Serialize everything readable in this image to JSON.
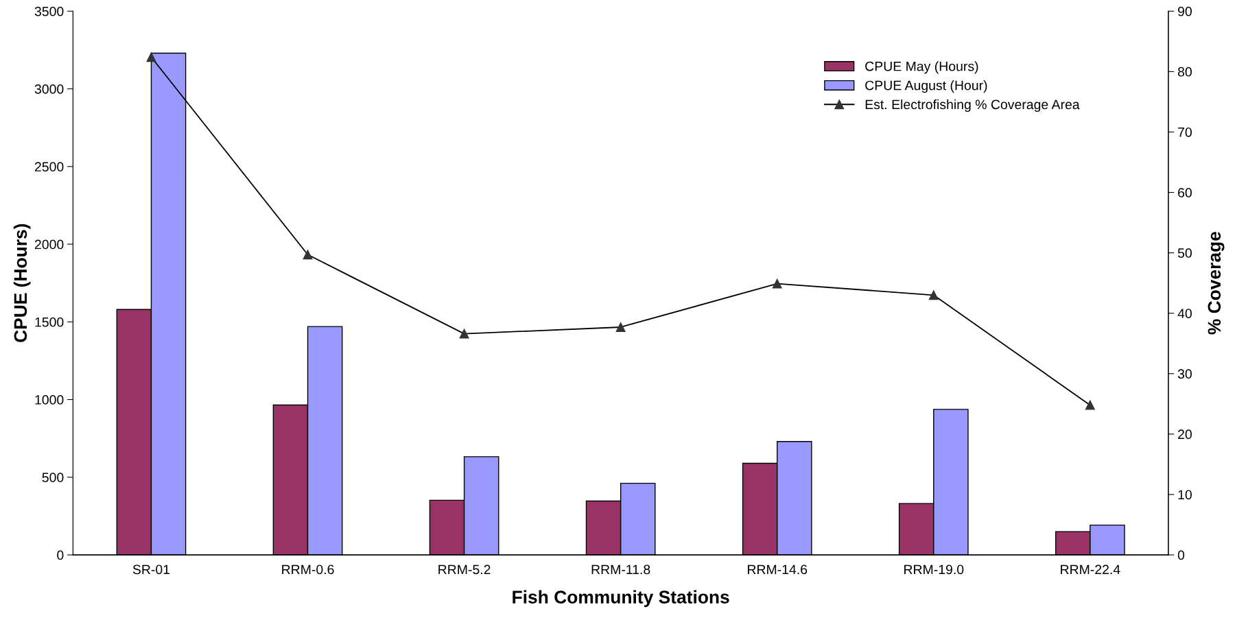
{
  "chart_data": {
    "type": "bar",
    "xlabel": "Fish Community Stations",
    "ylabel": "CPUE (Hours)",
    "y2label": "% Coverage",
    "categories": [
      "SR-01",
      "RRM-0.6",
      "RRM-5.2",
      "RRM-11.8",
      "RRM-14.6",
      "RRM-19.0",
      "RRM-22.4"
    ],
    "series": [
      {
        "name": "CPUE May (Hours)",
        "color": "#993366",
        "values": [
          1580,
          965,
          352,
          347,
          590,
          331,
          150
        ]
      },
      {
        "name": "CPUE August (Hour)",
        "color": "#9999ff",
        "values": [
          3230,
          1470,
          632,
          461,
          730,
          937,
          192
        ]
      },
      {
        "name": "Est. Electrofishing % Coverage Area",
        "type": "line",
        "axis": "y2",
        "color": "#000000",
        "marker": "triangle",
        "values": [
          82.4,
          49.7,
          36.6,
          37.7,
          44.9,
          43.0,
          24.8
        ]
      }
    ],
    "ylim": [
      0,
      3500
    ],
    "yticks": [
      0,
      500,
      1000,
      1500,
      2000,
      2500,
      3000,
      3500
    ],
    "y2lim": [
      0,
      90
    ],
    "y2ticks": [
      0,
      10,
      20,
      30,
      40,
      50,
      60,
      70,
      80,
      90
    ],
    "grid": false,
    "legend": "top right"
  }
}
